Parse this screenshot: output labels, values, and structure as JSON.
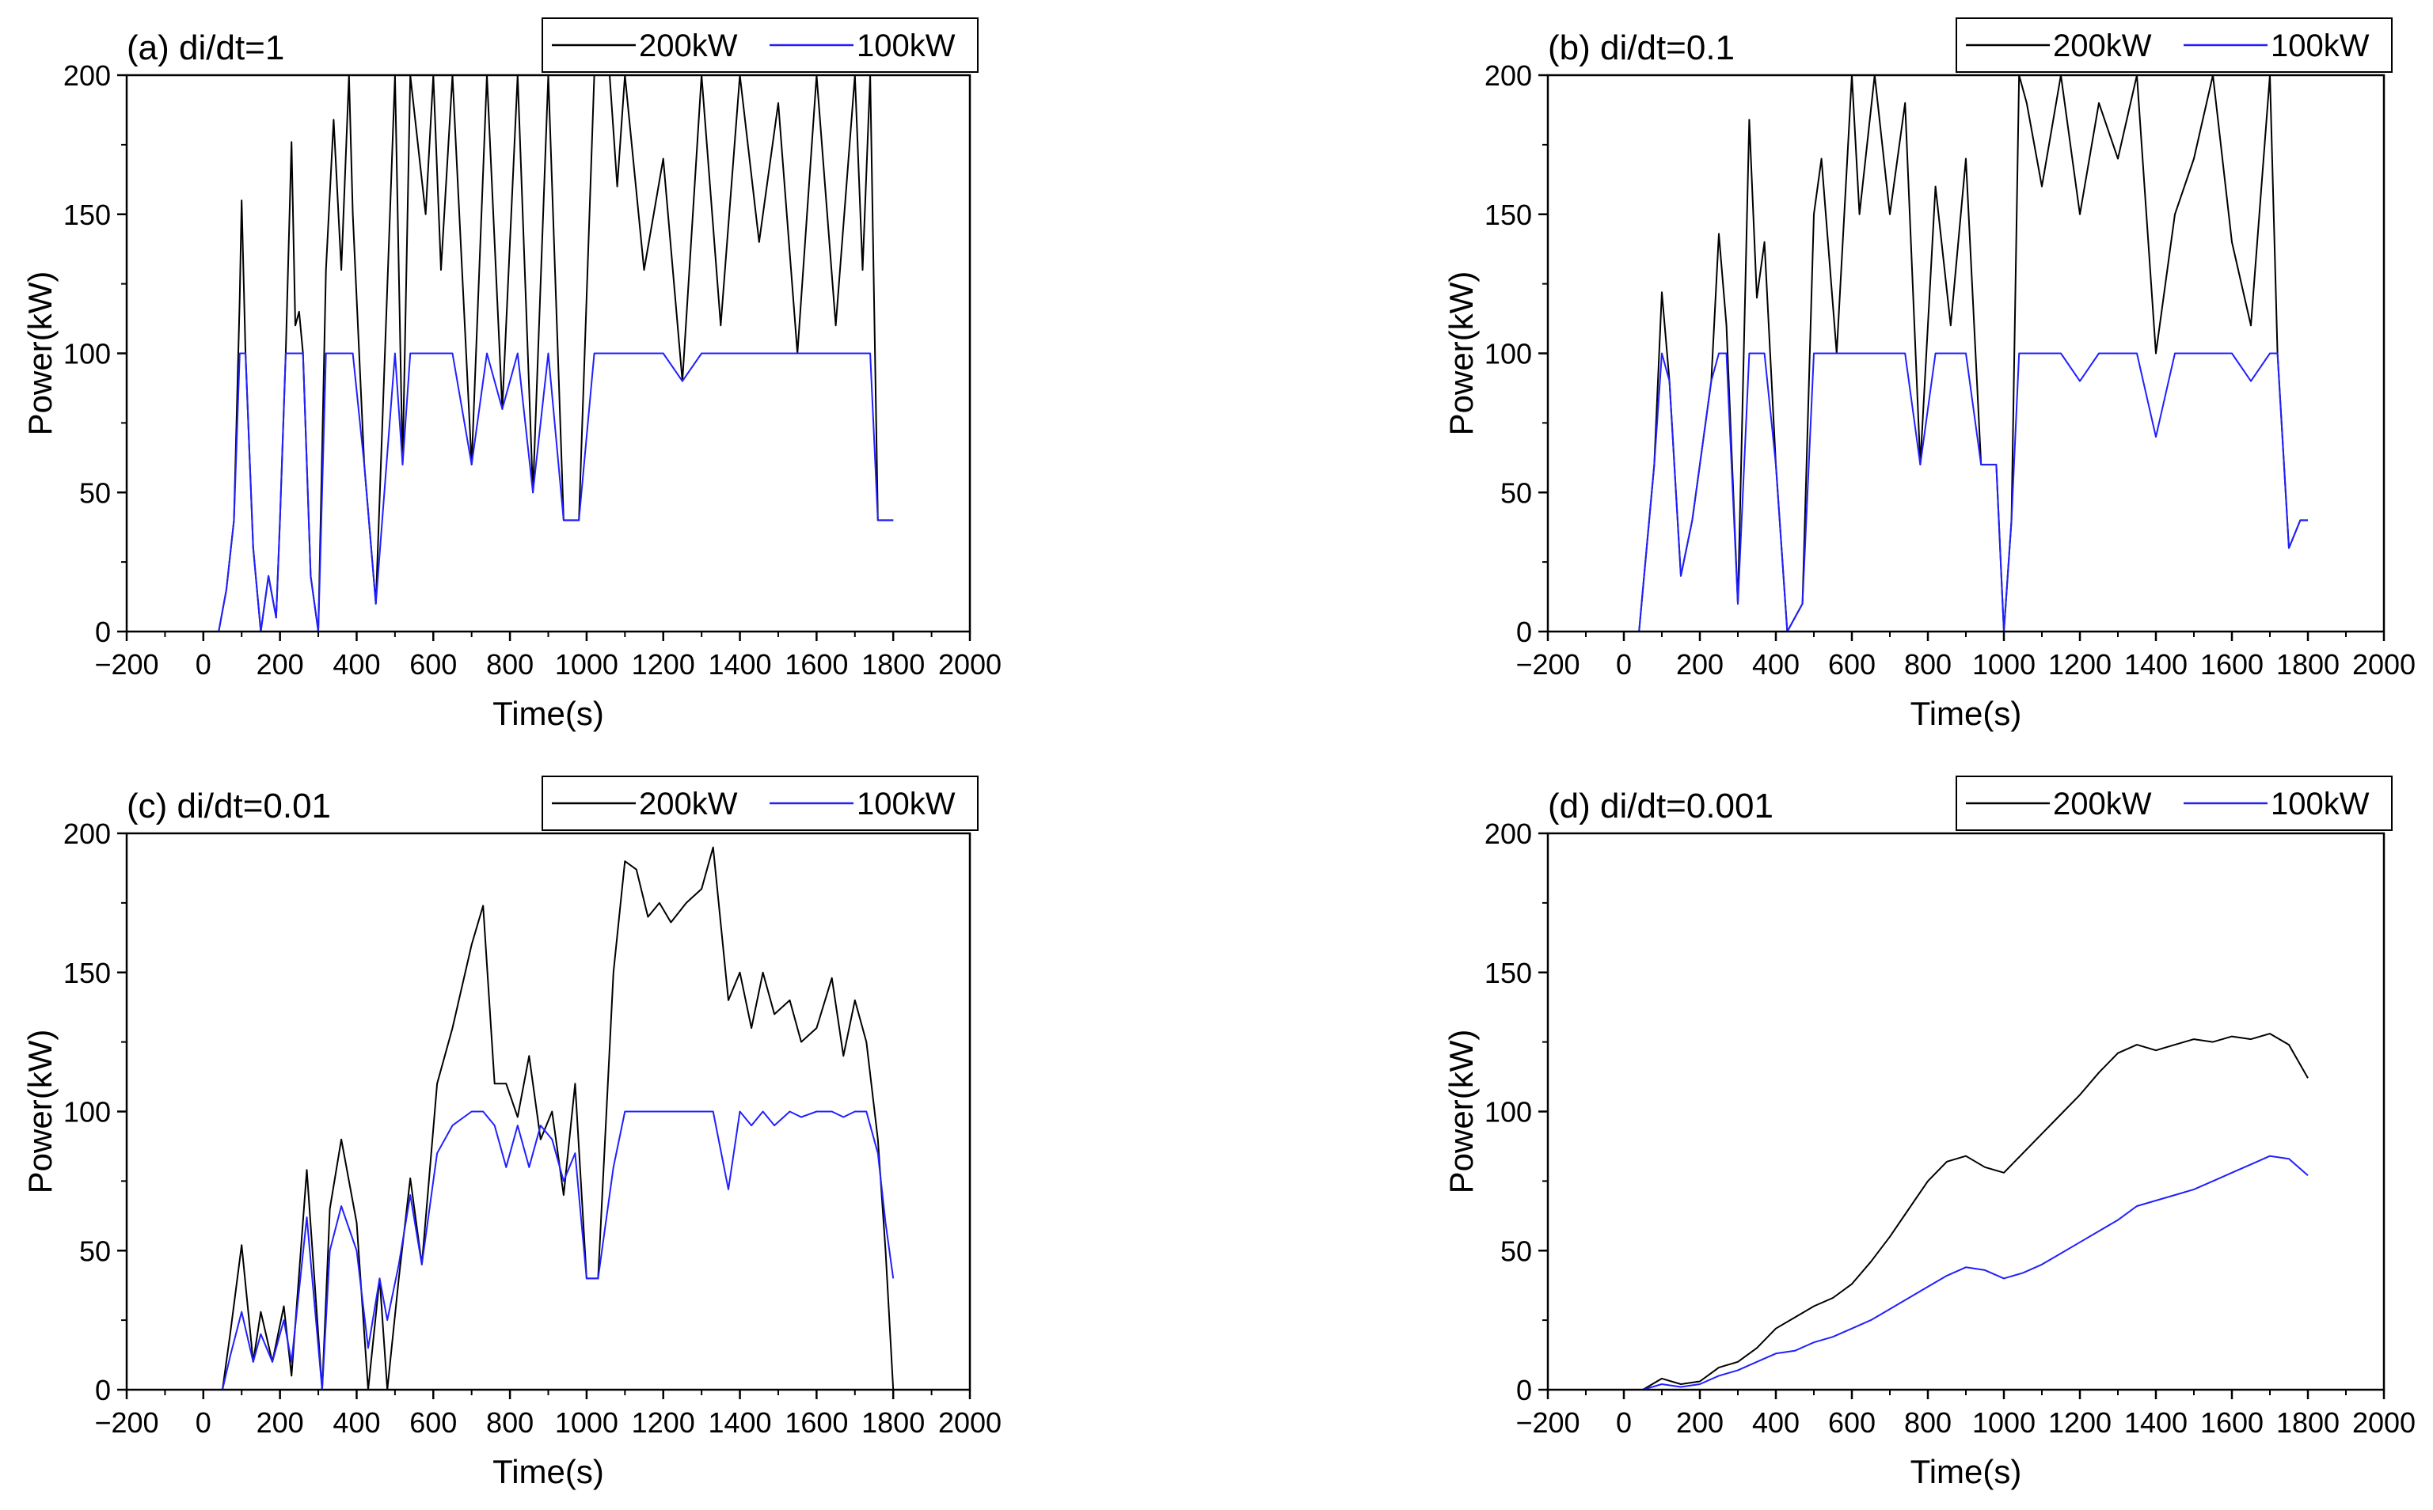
{
  "colors": {
    "series_200kW": "#000000",
    "series_100kW": "#2020ff",
    "axes": "#000000",
    "background": "#ffffff"
  },
  "chart_data": [
    {
      "type": "line",
      "title": "(a) di/dt=1",
      "xlabel": "Time(s)",
      "ylabel": "Power(kW)",
      "xlim": [
        -200,
        2000
      ],
      "ylim": [
        0,
        200
      ],
      "xticks": [
        "-200",
        "0",
        "200",
        "400",
        "600",
        "800",
        "1000",
        "1200",
        "1400",
        "1600",
        "1800",
        "2000"
      ],
      "yticks": [
        "0",
        "50",
        "100",
        "150",
        "200"
      ],
      "legend": {
        "placement": "top-right",
        "entries": [
          "200kW",
          "100kW"
        ]
      },
      "series": [
        {
          "name": "200kW",
          "x": [
            0,
            40,
            60,
            80,
            95,
            100,
            110,
            130,
            150,
            170,
            190,
            200,
            215,
            230,
            240,
            250,
            260,
            280,
            300,
            320,
            340,
            360,
            380,
            390,
            420,
            450,
            500,
            520,
            540,
            580,
            600,
            620,
            650,
            700,
            740,
            780,
            820,
            860,
            900,
            940,
            980,
            1020,
            1060,
            1080,
            1100,
            1150,
            1200,
            1250,
            1300,
            1350,
            1400,
            1450,
            1500,
            1550,
            1600,
            1650,
            1700,
            1720,
            1740,
            1760,
            1780,
            1800
          ],
          "y": [
            0,
            0,
            15,
            40,
            120,
            155,
            100,
            30,
            0,
            20,
            5,
            40,
            100,
            176,
            110,
            115,
            100,
            20,
            0,
            130,
            184,
            130,
            200,
            150,
            60,
            10,
            200,
            60,
            200,
            150,
            200,
            130,
            200,
            60,
            200,
            80,
            200,
            50,
            200,
            40,
            40,
            200,
            200,
            160,
            200,
            130,
            170,
            90,
            200,
            110,
            200,
            140,
            190,
            100,
            200,
            110,
            200,
            130,
            200,
            40,
            40,
            40
          ]
        },
        {
          "name": "100kW",
          "x": [
            0,
            40,
            60,
            80,
            95,
            100,
            110,
            130,
            150,
            170,
            190,
            200,
            215,
            230,
            240,
            250,
            260,
            280,
            300,
            320,
            340,
            360,
            380,
            390,
            420,
            450,
            500,
            520,
            540,
            580,
            600,
            620,
            650,
            700,
            740,
            780,
            820,
            860,
            900,
            940,
            980,
            1020,
            1060,
            1080,
            1100,
            1150,
            1200,
            1250,
            1300,
            1350,
            1400,
            1450,
            1500,
            1550,
            1600,
            1650,
            1700,
            1720,
            1740,
            1760,
            1780,
            1800
          ],
          "y": [
            0,
            0,
            15,
            40,
            100,
            100,
            100,
            30,
            0,
            20,
            5,
            40,
            100,
            100,
            100,
            100,
            100,
            20,
            0,
            100,
            100,
            100,
            100,
            100,
            60,
            10,
            100,
            60,
            100,
            100,
            100,
            100,
            100,
            60,
            100,
            80,
            100,
            50,
            100,
            40,
            40,
            100,
            100,
            100,
            100,
            100,
            100,
            90,
            100,
            100,
            100,
            100,
            100,
            100,
            100,
            100,
            100,
            100,
            100,
            40,
            40,
            40
          ]
        }
      ]
    },
    {
      "type": "line",
      "title": "(b) di/dt=0.1",
      "xlabel": "Time(s)",
      "ylabel": "Power(kW)",
      "xlim": [
        -200,
        2000
      ],
      "ylim": [
        0,
        200
      ],
      "xticks": [
        "-200",
        "0",
        "200",
        "400",
        "600",
        "800",
        "1000",
        "1200",
        "1400",
        "1600",
        "1800",
        "2000"
      ],
      "yticks": [
        "0",
        "50",
        "100",
        "150",
        "200"
      ],
      "legend": {
        "placement": "top-right",
        "entries": [
          "200kW",
          "100kW"
        ]
      },
      "series": [
        {
          "name": "200kW",
          "x": [
            0,
            40,
            60,
            80,
            100,
            120,
            150,
            180,
            200,
            230,
            250,
            270,
            300,
            330,
            350,
            370,
            400,
            430,
            470,
            500,
            520,
            560,
            600,
            620,
            660,
            700,
            740,
            780,
            820,
            860,
            900,
            940,
            980,
            1000,
            1020,
            1040,
            1060,
            1100,
            1150,
            1200,
            1250,
            1300,
            1350,
            1400,
            1450,
            1500,
            1550,
            1600,
            1650,
            1700,
            1720,
            1750,
            1780,
            1800
          ],
          "y": [
            0,
            0,
            30,
            60,
            122,
            90,
            20,
            40,
            60,
            90,
            143,
            110,
            10,
            184,
            120,
            140,
            60,
            0,
            10,
            150,
            170,
            100,
            200,
            150,
            200,
            150,
            190,
            60,
            160,
            110,
            170,
            60,
            60,
            0,
            40,
            200,
            190,
            160,
            200,
            150,
            190,
            170,
            200,
            100,
            150,
            170,
            200,
            140,
            110,
            200,
            100,
            30,
            40,
            40
          ]
        },
        {
          "name": "100kW",
          "x": [
            0,
            40,
            60,
            80,
            100,
            120,
            150,
            180,
            200,
            230,
            250,
            270,
            300,
            330,
            350,
            370,
            400,
            430,
            470,
            500,
            520,
            560,
            600,
            620,
            660,
            700,
            740,
            780,
            820,
            860,
            900,
            940,
            980,
            1000,
            1020,
            1040,
            1060,
            1100,
            1150,
            1200,
            1250,
            1300,
            1350,
            1400,
            1450,
            1500,
            1550,
            1600,
            1650,
            1700,
            1720,
            1750,
            1780,
            1800
          ],
          "y": [
            0,
            0,
            30,
            60,
            100,
            90,
            20,
            40,
            60,
            90,
            100,
            100,
            10,
            100,
            100,
            100,
            60,
            0,
            10,
            100,
            100,
            100,
            100,
            100,
            100,
            100,
            100,
            60,
            100,
            100,
            100,
            60,
            60,
            0,
            40,
            100,
            100,
            100,
            100,
            90,
            100,
            100,
            100,
            70,
            100,
            100,
            100,
            100,
            90,
            100,
            100,
            30,
            40,
            40
          ]
        }
      ]
    },
    {
      "type": "line",
      "title": "(c) di/dt=0.01",
      "xlabel": "Time(s)",
      "ylabel": "Power(kW)",
      "xlim": [
        -200,
        2000
      ],
      "ylim": [
        0,
        200
      ],
      "xticks": [
        "-200",
        "0",
        "200",
        "400",
        "600",
        "800",
        "1000",
        "1200",
        "1400",
        "1600",
        "1800",
        "2000"
      ],
      "yticks": [
        "0",
        "50",
        "100",
        "150",
        "200"
      ],
      "legend": {
        "placement": "top-right",
        "entries": [
          "200kW",
          "100kW"
        ]
      },
      "series": [
        {
          "name": "200kW",
          "x": [
            0,
            50,
            70,
            100,
            130,
            150,
            180,
            210,
            230,
            270,
            310,
            330,
            360,
            400,
            430,
            460,
            480,
            510,
            540,
            570,
            610,
            650,
            700,
            730,
            760,
            790,
            820,
            850,
            880,
            910,
            940,
            970,
            1000,
            1030,
            1070,
            1100,
            1130,
            1160,
            1190,
            1220,
            1260,
            1300,
            1330,
            1370,
            1400,
            1430,
            1460,
            1490,
            1530,
            1560,
            1600,
            1640,
            1670,
            1700,
            1730,
            1760,
            1780,
            1800
          ],
          "y": [
            0,
            0,
            20,
            52,
            10,
            28,
            10,
            30,
            5,
            79,
            0,
            65,
            90,
            60,
            0,
            40,
            0,
            40,
            76,
            45,
            110,
            130,
            160,
            174,
            110,
            110,
            98,
            120,
            90,
            100,
            70,
            110,
            40,
            40,
            150,
            190,
            187,
            170,
            175,
            168,
            175,
            180,
            195,
            140,
            150,
            130,
            150,
            135,
            140,
            125,
            130,
            148,
            120,
            140,
            125,
            90,
            50,
            0
          ]
        },
        {
          "name": "100kW",
          "x": [
            0,
            50,
            70,
            100,
            130,
            150,
            180,
            210,
            230,
            270,
            310,
            330,
            360,
            400,
            430,
            460,
            480,
            510,
            540,
            570,
            610,
            650,
            700,
            730,
            760,
            790,
            820,
            850,
            880,
            910,
            940,
            970,
            1000,
            1030,
            1070,
            1100,
            1130,
            1160,
            1190,
            1220,
            1260,
            1300,
            1330,
            1370,
            1400,
            1430,
            1460,
            1490,
            1530,
            1560,
            1600,
            1640,
            1670,
            1700,
            1730,
            1760,
            1780,
            1800
          ],
          "y": [
            0,
            0,
            12,
            28,
            10,
            20,
            10,
            25,
            10,
            62,
            0,
            50,
            66,
            50,
            15,
            40,
            25,
            45,
            70,
            45,
            85,
            95,
            100,
            100,
            95,
            80,
            95,
            80,
            95,
            90,
            75,
            85,
            40,
            40,
            80,
            100,
            100,
            100,
            100,
            100,
            100,
            100,
            100,
            72,
            100,
            95,
            100,
            95,
            100,
            98,
            100,
            100,
            98,
            100,
            100,
            85,
            60,
            40
          ]
        }
      ]
    },
    {
      "type": "line",
      "title": "(d) di/dt=0.001",
      "xlabel": "Time(s)",
      "ylabel": "Power(kW)",
      "xlim": [
        -200,
        2000
      ],
      "ylim": [
        0,
        200
      ],
      "xticks": [
        "-200",
        "0",
        "200",
        "400",
        "600",
        "800",
        "1000",
        "1200",
        "1400",
        "1600",
        "1800",
        "2000"
      ],
      "yticks": [
        "0",
        "50",
        "100",
        "150",
        "200"
      ],
      "legend": {
        "placement": "top-right",
        "entries": [
          "200kW",
          "100kW"
        ]
      },
      "series": [
        {
          "name": "200kW",
          "x": [
            0,
            50,
            100,
            150,
            200,
            250,
            300,
            350,
            400,
            450,
            500,
            550,
            600,
            650,
            700,
            750,
            800,
            850,
            900,
            950,
            1000,
            1050,
            1100,
            1150,
            1200,
            1250,
            1300,
            1350,
            1400,
            1450,
            1500,
            1550,
            1600,
            1650,
            1700,
            1750,
            1800
          ],
          "y": [
            0,
            0,
            4,
            2,
            3,
            8,
            10,
            15,
            22,
            26,
            30,
            33,
            38,
            46,
            55,
            65,
            75,
            82,
            84,
            80,
            78,
            85,
            92,
            99,
            106,
            114,
            121,
            124,
            122,
            124,
            126,
            125,
            127,
            126,
            128,
            124,
            112
          ]
        },
        {
          "name": "100kW",
          "x": [
            0,
            50,
            100,
            150,
            200,
            250,
            300,
            350,
            400,
            450,
            500,
            550,
            600,
            650,
            700,
            750,
            800,
            850,
            900,
            950,
            1000,
            1050,
            1100,
            1150,
            1200,
            1250,
            1300,
            1350,
            1400,
            1450,
            1500,
            1550,
            1600,
            1650,
            1700,
            1750,
            1800
          ],
          "y": [
            0,
            0,
            2,
            1,
            2,
            5,
            7,
            10,
            13,
            14,
            17,
            19,
            22,
            25,
            29,
            33,
            37,
            41,
            44,
            43,
            40,
            42,
            45,
            49,
            53,
            57,
            61,
            66,
            68,
            70,
            72,
            75,
            78,
            81,
            84,
            83,
            77
          ]
        }
      ]
    }
  ]
}
